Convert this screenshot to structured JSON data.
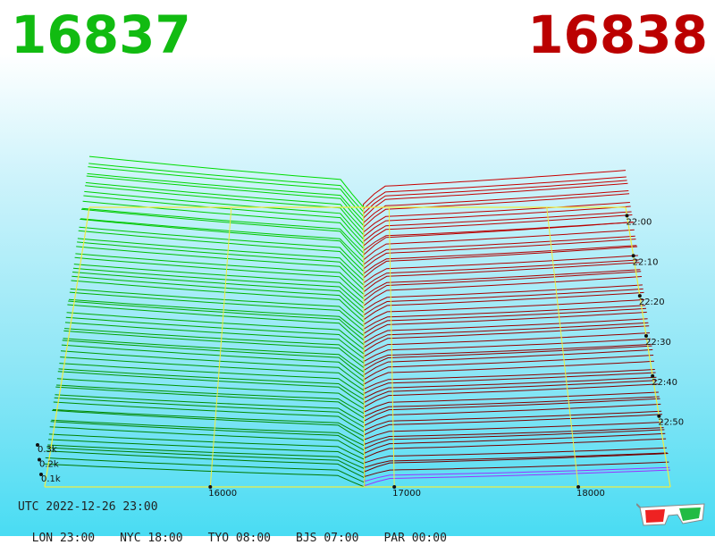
{
  "header": {
    "bid_price": "16837",
    "ask_price": "16838"
  },
  "colors": {
    "bid": "#11bb11",
    "ask": "#bb0000",
    "grid": "#eeee44",
    "axis_text": "#111111"
  },
  "footer": {
    "utc": "UTC 2022-12-26 23:00",
    "zones": [
      "LON 23:00",
      "NYC 18:00",
      "TYO 08:00",
      "BJS 07:00",
      "PAR 00:00"
    ]
  },
  "icons": {
    "glasses": "3d-glasses-icon"
  },
  "chart_data": {
    "type": "area",
    "x_ticks": [
      "16000",
      "17000",
      "18000"
    ],
    "x_tick_values": [
      16000,
      17000,
      18000
    ],
    "depth_ticks": [
      "0.1k",
      "0.2k",
      "0.3k"
    ],
    "time_ticks": [
      "22:00",
      "22:10",
      "22:20",
      "22:30",
      "22:40",
      "22:50"
    ],
    "time_tick_values": [
      0,
      10,
      20,
      30,
      40,
      50
    ],
    "xlim": [
      15100,
      18500
    ],
    "time_range_minutes": [
      0,
      60
    ],
    "mid_price": 16837.5,
    "grid": true
  }
}
